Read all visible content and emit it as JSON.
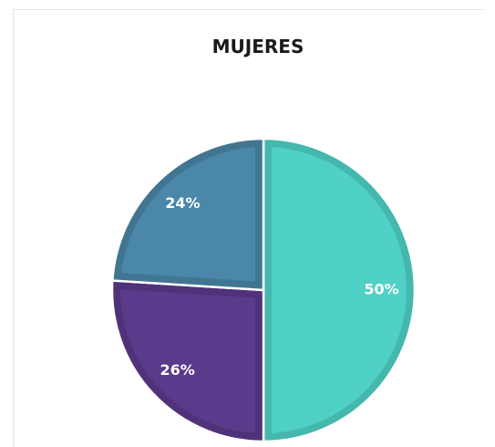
{
  "chart_data": {
    "type": "pie",
    "title": "MUJERES",
    "values": [
      50,
      26,
      24
    ],
    "value_labels": [
      "50%",
      "26%",
      "24%"
    ],
    "colors": [
      "#4fd1c5",
      "#5a3a8a",
      "#4a87a8"
    ]
  }
}
